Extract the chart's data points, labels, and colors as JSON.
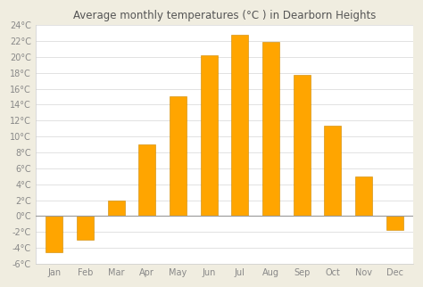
{
  "title": "Average monthly temperatures (°C ) in Dearborn Heights",
  "months": [
    "Jan",
    "Feb",
    "Mar",
    "Apr",
    "May",
    "Jun",
    "Jul",
    "Aug",
    "Sep",
    "Oct",
    "Nov",
    "Dec"
  ],
  "values": [
    -4.5,
    -3.0,
    2.0,
    9.0,
    15.0,
    20.2,
    22.8,
    21.9,
    17.7,
    11.3,
    5.0,
    -1.7
  ],
  "bar_color": "#FFA500",
  "bar_edge_color": "#CC8800",
  "ylim": [
    -6,
    24
  ],
  "yticks": [
    -6,
    -4,
    -2,
    0,
    2,
    4,
    6,
    8,
    10,
    12,
    14,
    16,
    18,
    20,
    22,
    24
  ],
  "plot_bg_color": "#ffffff",
  "figure_bg_color": "#f0ede0",
  "grid_color": "#dddddd",
  "title_fontsize": 8.5,
  "tick_fontsize": 7,
  "title_color": "#555555",
  "tick_color": "#888888",
  "bar_width": 0.55
}
